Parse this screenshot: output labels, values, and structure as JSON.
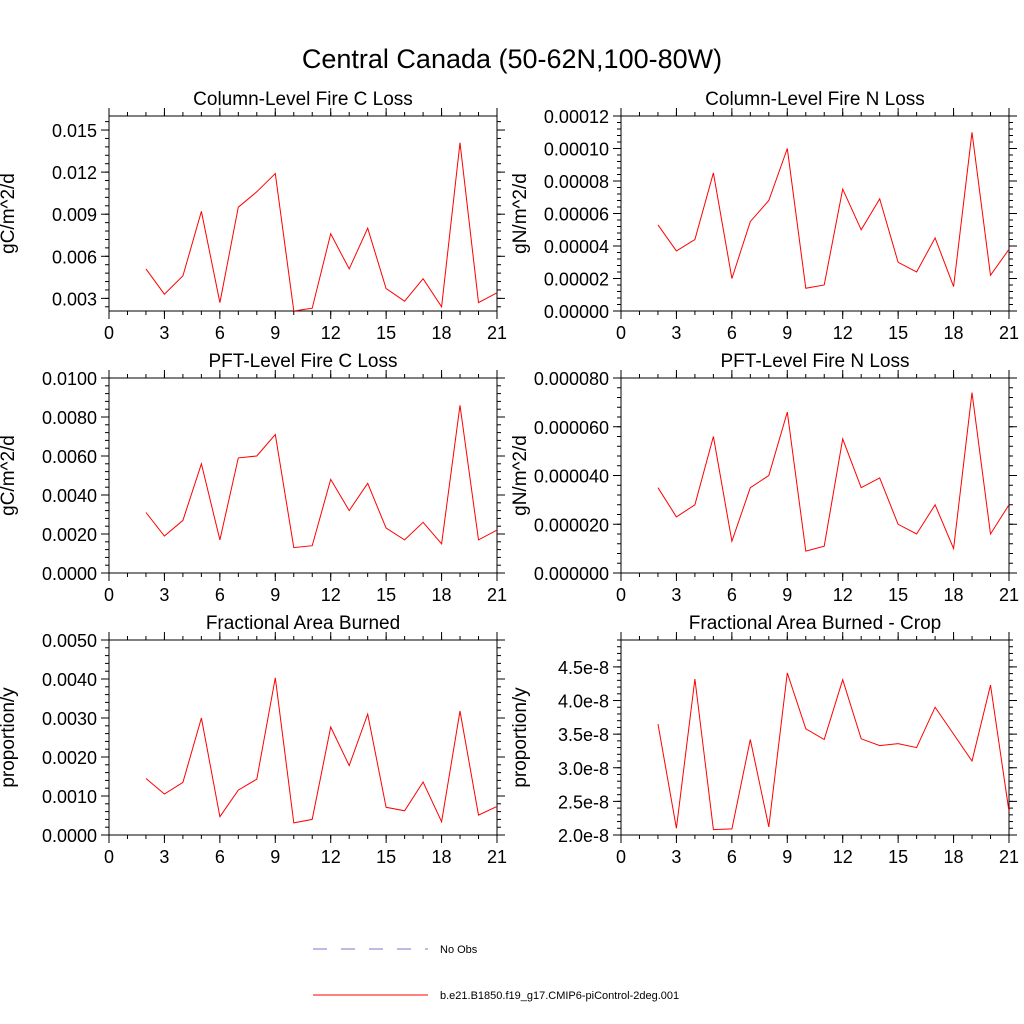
{
  "figure": {
    "title": "Central Canada (50-62N,100-80W)"
  },
  "legend": {
    "entries": [
      {
        "label": "No Obs",
        "color": "#7777cc",
        "dashed": true
      },
      {
        "label": "b.e21.B1850.f19_g17.CMIP6-piControl-2deg.001",
        "color": "#ff0000",
        "dashed": false
      }
    ]
  },
  "chart_data": [
    {
      "type": "line",
      "title": "Column-Level Fire C Loss",
      "xlabel": "",
      "ylabel": "gC/m^2/d",
      "xlim": [
        0,
        21
      ],
      "ylim": [
        0.0021,
        0.016
      ],
      "xticks": [
        0,
        3,
        6,
        9,
        12,
        15,
        18,
        21
      ],
      "yticks": [
        0.003,
        0.006,
        0.009,
        0.012,
        0.015
      ],
      "ytick_labels": [
        "0.003",
        "0.006",
        "0.009",
        "0.012",
        "0.015"
      ],
      "series": [
        {
          "name": "b.e21.B1850.f19_g17.CMIP6-piControl-2deg.001",
          "color": "#ff0000",
          "x": [
            2,
            3,
            4,
            5,
            6,
            7,
            8,
            9,
            10,
            11,
            12,
            13,
            14,
            15,
            16,
            17,
            18,
            19,
            20,
            21
          ],
          "y": [
            0.0051,
            0.0033,
            0.0046,
            0.0092,
            0.0027,
            0.0095,
            0.0106,
            0.0119,
            0.0021,
            0.0023,
            0.0076,
            0.0051,
            0.008,
            0.0037,
            0.0028,
            0.0044,
            0.0024,
            0.0141,
            0.0027,
            0.0034
          ]
        }
      ]
    },
    {
      "type": "line",
      "title": "Column-Level Fire N Loss",
      "xlabel": "",
      "ylabel": "gN/m^2/d",
      "xlim": [
        0,
        21
      ],
      "ylim": [
        0,
        0.00012
      ],
      "xticks": [
        0,
        3,
        6,
        9,
        12,
        15,
        18,
        21
      ],
      "yticks": [
        0,
        2e-05,
        4e-05,
        6e-05,
        8e-05,
        0.0001,
        0.00012
      ],
      "ytick_labels": [
        "0.00000",
        "0.00002",
        "0.00004",
        "0.00006",
        "0.00008",
        "0.00010",
        "0.00012"
      ],
      "series": [
        {
          "name": "b.e21.B1850.f19_g17.CMIP6-piControl-2deg.001",
          "color": "#ff0000",
          "x": [
            2,
            3,
            4,
            5,
            6,
            7,
            8,
            9,
            10,
            11,
            12,
            13,
            14,
            15,
            16,
            17,
            18,
            19,
            20,
            21
          ],
          "y": [
            5.3e-05,
            3.7e-05,
            4.4e-05,
            8.5e-05,
            2e-05,
            5.5e-05,
            6.8e-05,
            0.0001,
            1.4e-05,
            1.6e-05,
            7.5e-05,
            5e-05,
            6.9e-05,
            3e-05,
            2.4e-05,
            4.5e-05,
            1.5e-05,
            0.00011,
            2.2e-05,
            3.8e-05
          ]
        }
      ]
    },
    {
      "type": "line",
      "title": "PFT-Level Fire C Loss",
      "xlabel": "",
      "ylabel": "gC/m^2/d",
      "xlim": [
        0,
        21
      ],
      "ylim": [
        0,
        0.01
      ],
      "xticks": [
        0,
        3,
        6,
        9,
        12,
        15,
        18,
        21
      ],
      "yticks": [
        0,
        0.002,
        0.004,
        0.006,
        0.008,
        0.01
      ],
      "ytick_labels": [
        "0.0000",
        "0.0020",
        "0.0040",
        "0.0060",
        "0.0080",
        "0.0100"
      ],
      "series": [
        {
          "name": "b.e21.B1850.f19_g17.CMIP6-piControl-2deg.001",
          "color": "#ff0000",
          "x": [
            2,
            3,
            4,
            5,
            6,
            7,
            8,
            9,
            10,
            11,
            12,
            13,
            14,
            15,
            16,
            17,
            18,
            19,
            20,
            21
          ],
          "y": [
            0.0031,
            0.0019,
            0.0027,
            0.0056,
            0.0017,
            0.0059,
            0.006,
            0.0071,
            0.0013,
            0.0014,
            0.0048,
            0.0032,
            0.0046,
            0.0023,
            0.0017,
            0.0026,
            0.0015,
            0.0086,
            0.0017,
            0.0022
          ]
        }
      ]
    },
    {
      "type": "line",
      "title": "PFT-Level Fire N Loss",
      "xlabel": "",
      "ylabel": "gN/m^2/d",
      "xlim": [
        0,
        21
      ],
      "ylim": [
        0,
        8e-05
      ],
      "xticks": [
        0,
        3,
        6,
        9,
        12,
        15,
        18,
        21
      ],
      "yticks": [
        0,
        2e-05,
        4e-05,
        6e-05,
        8e-05
      ],
      "ytick_labels": [
        "0.000000",
        "0.000020",
        "0.000040",
        "0.000060",
        "0.000080"
      ],
      "series": [
        {
          "name": "b.e21.B1850.f19_g17.CMIP6-piControl-2deg.001",
          "color": "#ff0000",
          "x": [
            2,
            3,
            4,
            5,
            6,
            7,
            8,
            9,
            10,
            11,
            12,
            13,
            14,
            15,
            16,
            17,
            18,
            19,
            20,
            21
          ],
          "y": [
            3.5e-05,
            2.3e-05,
            2.8e-05,
            5.6e-05,
            1.3e-05,
            3.5e-05,
            4e-05,
            6.6e-05,
            9e-06,
            1.1e-05,
            5.5e-05,
            3.5e-05,
            3.9e-05,
            2e-05,
            1.6e-05,
            2.8e-05,
            1e-05,
            7.4e-05,
            1.6e-05,
            2.8e-05
          ]
        }
      ]
    },
    {
      "type": "line",
      "title": "Fractional Area Burned",
      "xlabel": "",
      "ylabel": "proportion/y",
      "xlim": [
        0,
        21
      ],
      "ylim": [
        0,
        0.005
      ],
      "xticks": [
        0,
        3,
        6,
        9,
        12,
        15,
        18,
        21
      ],
      "yticks": [
        0,
        0.001,
        0.002,
        0.003,
        0.004,
        0.005
      ],
      "ytick_labels": [
        "0.0000",
        "0.0010",
        "0.0020",
        "0.0030",
        "0.0040",
        "0.0050"
      ],
      "series": [
        {
          "name": "b.e21.B1850.f19_g17.CMIP6-piControl-2deg.001",
          "color": "#ff0000",
          "x": [
            2,
            3,
            4,
            5,
            6,
            7,
            8,
            9,
            10,
            11,
            12,
            13,
            14,
            15,
            16,
            17,
            18,
            19,
            20,
            21
          ],
          "y": [
            0.00145,
            0.00105,
            0.00135,
            0.003,
            0.00047,
            0.00115,
            0.00143,
            0.00403,
            0.00031,
            0.0004,
            0.00277,
            0.00178,
            0.0031,
            0.00071,
            0.00062,
            0.00136,
            0.00034,
            0.00318,
            0.00051,
            0.00073
          ]
        }
      ]
    },
    {
      "type": "line",
      "title": "Fractional Area Burned - Crop",
      "xlabel": "",
      "ylabel": "proportion/y",
      "xlim": [
        0,
        21
      ],
      "ylim": [
        2e-08,
        4.9e-08
      ],
      "xticks": [
        0,
        3,
        6,
        9,
        12,
        15,
        18,
        21
      ],
      "yticks": [
        2e-08,
        2.5e-08,
        3e-08,
        3.5e-08,
        4e-08,
        4.5e-08
      ],
      "ytick_labels": [
        "2.0e-8",
        "2.5e-8",
        "3.0e-8",
        "3.5e-8",
        "4.0e-8",
        "4.5e-8"
      ],
      "series": [
        {
          "name": "b.e21.B1850.f19_g17.CMIP6-piControl-2deg.001",
          "color": "#ff0000",
          "x": [
            2,
            3,
            4,
            5,
            6,
            7,
            8,
            9,
            10,
            11,
            12,
            13,
            14,
            15,
            16,
            17,
            18,
            19,
            20,
            21
          ],
          "y": [
            3.65e-08,
            2.1e-08,
            4.32e-08,
            2.08e-08,
            2.09e-08,
            3.42e-08,
            2.12e-08,
            4.41e-08,
            3.58e-08,
            3.42e-08,
            4.31e-08,
            3.43e-08,
            3.33e-08,
            3.36e-08,
            3.3e-08,
            3.9e-08,
            3.5e-08,
            3.1e-08,
            4.23e-08,
            2.35e-08
          ]
        }
      ]
    }
  ]
}
